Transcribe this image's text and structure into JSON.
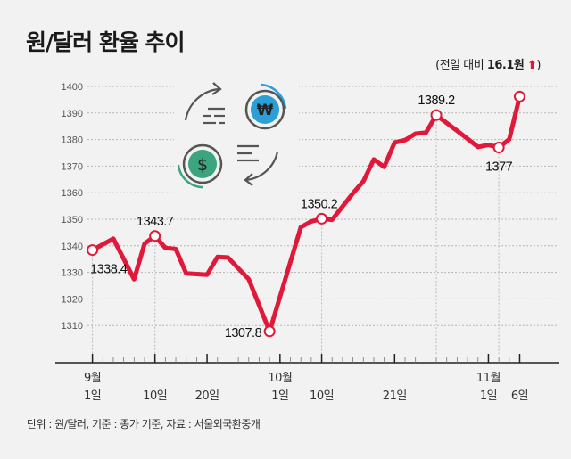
{
  "title": "원/달러 환율 추이",
  "note": {
    "prefix": "(전일 대비 ",
    "value": "16.1원",
    "arrow": "⬆",
    "suffix": ")"
  },
  "footer": "단위 : 원/달러, 기준 : 종가 기준, 자료 : 서울외국환중개",
  "colors": {
    "line": "#e0193a",
    "grid": "#bdbdbd",
    "won_coin": "#2a9fd8",
    "dollar_coin": "#3aa57e",
    "background": "#f2f2f2"
  },
  "icons": [
    "currency-exchange-icon",
    "won-coin-icon",
    "dollar-coin-icon"
  ],
  "chart_data": {
    "type": "line",
    "title": "원/달러 환율 추이",
    "ylim": [
      1300,
      1400
    ],
    "yticks": [
      "1310",
      "1320",
      "1330",
      "1340",
      "1350",
      "1360",
      "1370",
      "1380",
      "1390",
      "1400"
    ],
    "grid": "horizontal dotted",
    "xticks": [
      {
        "date": "9/2",
        "month": "9월",
        "day": "1일"
      },
      {
        "date": "9/10",
        "month": "",
        "day": "10일"
      },
      {
        "date": "9/20",
        "month": "",
        "day": "20일"
      },
      {
        "date": "10/2",
        "month": "10월",
        "day": "1일"
      },
      {
        "date": "10/10",
        "month": "",
        "day": "10일"
      },
      {
        "date": "10/21",
        "month": "",
        "day": "21일"
      },
      {
        "date": "11/1",
        "month": "11월",
        "day": "1일"
      },
      {
        "date": "11/6",
        "month": "",
        "day": "6일"
      }
    ],
    "series": [
      {
        "points": [
          {
            "x": "9/2",
            "y": 1338.4,
            "label": "1338.4",
            "pos": "below"
          },
          {
            "x": "9/4",
            "y": 1342.7
          },
          {
            "x": "9/6",
            "y": 1327.4
          },
          {
            "x": "9/9",
            "y": 1340.8
          },
          {
            "x": "9/10",
            "y": 1343.7,
            "label": "1343.7",
            "pos": "above"
          },
          {
            "x": "9/11",
            "y": 1339.2
          },
          {
            "x": "9/12",
            "y": 1338.8
          },
          {
            "x": "9/13",
            "y": 1329.6
          },
          {
            "x": "9/20",
            "y": 1329.1
          },
          {
            "x": "9/23",
            "y": 1335.8
          },
          {
            "x": "9/24",
            "y": 1335.6
          },
          {
            "x": "9/26",
            "y": 1327.4
          },
          {
            "x": "9/30",
            "y": 1307.8,
            "label": "1307.8",
            "pos": "left"
          },
          {
            "x": "10/7",
            "y": 1347.0
          },
          {
            "x": "10/8",
            "y": 1349.2
          },
          {
            "x": "10/10",
            "y": 1350.2,
            "label": "1350.2",
            "pos": "above"
          },
          {
            "x": "10/11",
            "y": 1349.8
          },
          {
            "x": "10/15",
            "y": 1359.8
          },
          {
            "x": "10/16",
            "y": 1364.3
          },
          {
            "x": "10/17",
            "y": 1372.5
          },
          {
            "x": "10/18",
            "y": 1369.7
          },
          {
            "x": "10/21",
            "y": 1378.9
          },
          {
            "x": "10/22",
            "y": 1379.8
          },
          {
            "x": "10/23",
            "y": 1382.2
          },
          {
            "x": "10/24",
            "y": 1382.6
          },
          {
            "x": "10/25",
            "y": 1389.2,
            "label": "1389.2",
            "pos": "above"
          },
          {
            "x": "10/29",
            "y": 1383.3
          },
          {
            "x": "10/31",
            "y": 1377.2
          },
          {
            "x": "11/1",
            "y": 1378.0
          },
          {
            "x": "11/4",
            "y": 1377.0,
            "label": "1377",
            "pos": "below"
          },
          {
            "x": "11/5",
            "y": 1380.1
          },
          {
            "x": "11/6",
            "y": 1396.2,
            "marker": true
          }
        ]
      }
    ]
  }
}
